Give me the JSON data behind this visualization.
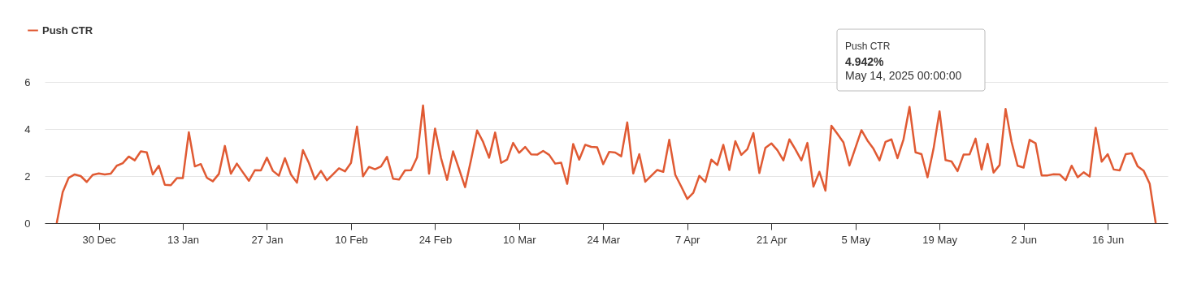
{
  "chart_data": {
    "type": "line",
    "x": [
      "2024-12-23",
      "2024-12-24",
      "2024-12-25",
      "2024-12-26",
      "2024-12-27",
      "2024-12-28",
      "2024-12-29",
      "2024-12-30",
      "2024-12-31",
      "2025-01-01",
      "2025-01-02",
      "2025-01-03",
      "2025-01-04",
      "2025-01-05",
      "2025-01-06",
      "2025-01-07",
      "2025-01-08",
      "2025-01-09",
      "2025-01-10",
      "2025-01-11",
      "2025-01-12",
      "2025-01-13",
      "2025-01-14",
      "2025-01-15",
      "2025-01-16",
      "2025-01-17",
      "2025-01-18",
      "2025-01-19",
      "2025-01-20",
      "2025-01-21",
      "2025-01-22",
      "2025-01-23",
      "2025-01-24",
      "2025-01-25",
      "2025-01-26",
      "2025-01-27",
      "2025-01-28",
      "2025-01-29",
      "2025-01-30",
      "2025-01-31",
      "2025-02-01",
      "2025-02-02",
      "2025-02-03",
      "2025-02-04",
      "2025-02-05",
      "2025-02-06",
      "2025-02-07",
      "2025-02-08",
      "2025-02-09",
      "2025-02-10",
      "2025-02-11",
      "2025-02-12",
      "2025-02-13",
      "2025-02-14",
      "2025-02-15",
      "2025-02-16",
      "2025-02-17",
      "2025-02-18",
      "2025-02-19",
      "2025-02-20",
      "2025-02-21",
      "2025-02-22",
      "2025-02-23",
      "2025-02-24",
      "2025-02-25",
      "2025-02-26",
      "2025-02-27",
      "2025-02-28",
      "2025-03-01",
      "2025-03-02",
      "2025-03-03",
      "2025-03-04",
      "2025-03-05",
      "2025-03-06",
      "2025-03-07",
      "2025-03-08",
      "2025-03-09",
      "2025-03-10",
      "2025-03-11",
      "2025-03-12",
      "2025-03-13",
      "2025-03-14",
      "2025-03-15",
      "2025-03-16",
      "2025-03-17",
      "2025-03-18",
      "2025-03-19",
      "2025-03-20",
      "2025-03-21",
      "2025-03-22",
      "2025-03-23",
      "2025-03-24",
      "2025-03-25",
      "2025-03-26",
      "2025-03-27",
      "2025-03-28",
      "2025-03-29",
      "2025-03-30",
      "2025-03-31",
      "2025-04-01",
      "2025-04-02",
      "2025-04-03",
      "2025-04-04",
      "2025-04-05",
      "2025-04-06",
      "2025-04-07",
      "2025-04-08",
      "2025-04-09",
      "2025-04-10",
      "2025-04-11",
      "2025-04-12",
      "2025-04-13",
      "2025-04-14",
      "2025-04-15",
      "2025-04-16",
      "2025-04-17",
      "2025-04-18",
      "2025-04-19",
      "2025-04-20",
      "2025-04-21",
      "2025-04-22",
      "2025-04-23",
      "2025-04-24",
      "2025-04-25",
      "2025-04-26",
      "2025-04-27",
      "2025-04-28",
      "2025-04-29",
      "2025-04-30",
      "2025-05-01",
      "2025-05-02",
      "2025-05-03",
      "2025-05-04",
      "2025-05-05",
      "2025-05-06",
      "2025-05-07",
      "2025-05-08",
      "2025-05-09",
      "2025-05-10",
      "2025-05-11",
      "2025-05-12",
      "2025-05-13",
      "2025-05-14",
      "2025-05-15",
      "2025-05-16",
      "2025-05-17",
      "2025-05-18",
      "2025-05-19",
      "2025-05-20",
      "2025-05-21",
      "2025-05-22",
      "2025-05-23",
      "2025-05-24",
      "2025-05-25",
      "2025-05-26",
      "2025-05-27",
      "2025-05-28",
      "2025-05-29",
      "2025-05-30",
      "2025-05-31",
      "2025-06-01",
      "2025-06-02",
      "2025-06-03",
      "2025-06-04",
      "2025-06-05",
      "2025-06-06",
      "2025-06-07",
      "2025-06-08",
      "2025-06-09",
      "2025-06-10",
      "2025-06-11",
      "2025-06-12",
      "2025-06-13",
      "2025-06-14",
      "2025-06-15",
      "2025-06-16",
      "2025-06-17",
      "2025-06-18",
      "2025-06-19",
      "2025-06-20",
      "2025-06-21",
      "2025-06-22",
      "2025-06-23",
      "2025-06-24"
    ],
    "series": [
      {
        "name": "Push CTR",
        "color": "#e05a33",
        "values": [
          0,
          1.32,
          1.93,
          2.07,
          2.0,
          1.75,
          2.05,
          2.11,
          2.07,
          2.1,
          2.44,
          2.55,
          2.83,
          2.67,
          3.05,
          3.01,
          2.07,
          2.44,
          1.63,
          1.61,
          1.91,
          1.91,
          3.86,
          2.41,
          2.51,
          1.93,
          1.78,
          2.09,
          3.28,
          2.1,
          2.53,
          2.16,
          1.8,
          2.25,
          2.24,
          2.78,
          2.22,
          2.02,
          2.76,
          2.07,
          1.72,
          3.1,
          2.55,
          1.86,
          2.22,
          1.82,
          2.07,
          2.33,
          2.2,
          2.56,
          4.1,
          1.99,
          2.39,
          2.29,
          2.41,
          2.82,
          1.89,
          1.85,
          2.24,
          2.25,
          2.79,
          5.0,
          2.1,
          4.02,
          2.76,
          1.84,
          3.05,
          2.3,
          1.53,
          2.7,
          3.94,
          3.45,
          2.78,
          3.85,
          2.56,
          2.7,
          3.41,
          2.99,
          3.24,
          2.92,
          2.91,
          3.07,
          2.9,
          2.53,
          2.57,
          1.67,
          3.36,
          2.7,
          3.33,
          3.24,
          3.22,
          2.51,
          3.03,
          3.0,
          2.84,
          4.28,
          2.11,
          2.93,
          1.76,
          2.01,
          2.26,
          2.18,
          3.54,
          2.05,
          1.55,
          1.03,
          1.29,
          2.01,
          1.75,
          2.7,
          2.47,
          3.33,
          2.26,
          3.48,
          2.9,
          3.14,
          3.83,
          2.13,
          3.2,
          3.39,
          3.1,
          2.67,
          3.56,
          3.13,
          2.67,
          3.41,
          1.55,
          2.18,
          1.38,
          4.14,
          3.79,
          3.43,
          2.45,
          3.2,
          3.95,
          3.51,
          3.16,
          2.67,
          3.45,
          3.56,
          2.76,
          3.56,
          4.942,
          3.01,
          2.93,
          1.95,
          3.16,
          4.75,
          2.68,
          2.62,
          2.21,
          2.91,
          2.92,
          3.59,
          2.28,
          3.37,
          2.15,
          2.47,
          4.85,
          3.45,
          2.44,
          2.36,
          3.54,
          3.39,
          2.03,
          2.03,
          2.08,
          2.07,
          1.82,
          2.44,
          1.95,
          2.16,
          1.98,
          4.05,
          2.61,
          2.93,
          2.28,
          2.24,
          2.93,
          2.97,
          2.41,
          2.22,
          1.67,
          0
        ]
      }
    ],
    "xlim": [
      "2024-12-21",
      "2025-06-26"
    ],
    "xticks": [
      {
        "value": "2024-12-30",
        "label": "30 Dec"
      },
      {
        "value": "2025-01-13",
        "label": "13 Jan"
      },
      {
        "value": "2025-01-27",
        "label": "27 Jan"
      },
      {
        "value": "2025-02-10",
        "label": "10 Feb"
      },
      {
        "value": "2025-02-24",
        "label": "24 Feb"
      },
      {
        "value": "2025-03-10",
        "label": "10 Mar"
      },
      {
        "value": "2025-03-24",
        "label": "24 Mar"
      },
      {
        "value": "2025-04-07",
        "label": "7 Apr"
      },
      {
        "value": "2025-04-21",
        "label": "21 Apr"
      },
      {
        "value": "2025-05-05",
        "label": "5 May"
      },
      {
        "value": "2025-05-19",
        "label": "19 May"
      },
      {
        "value": "2025-06-02",
        "label": "2 Jun"
      },
      {
        "value": "2025-06-16",
        "label": "16 Jun"
      }
    ],
    "ylim": [
      0,
      6
    ],
    "yticks": [
      0,
      2,
      4,
      6
    ],
    "grid": "y",
    "legend": "top left",
    "annotations": [
      "Push CTR",
      "4.942%",
      "May 14, 2025 00:00:00"
    ]
  }
}
